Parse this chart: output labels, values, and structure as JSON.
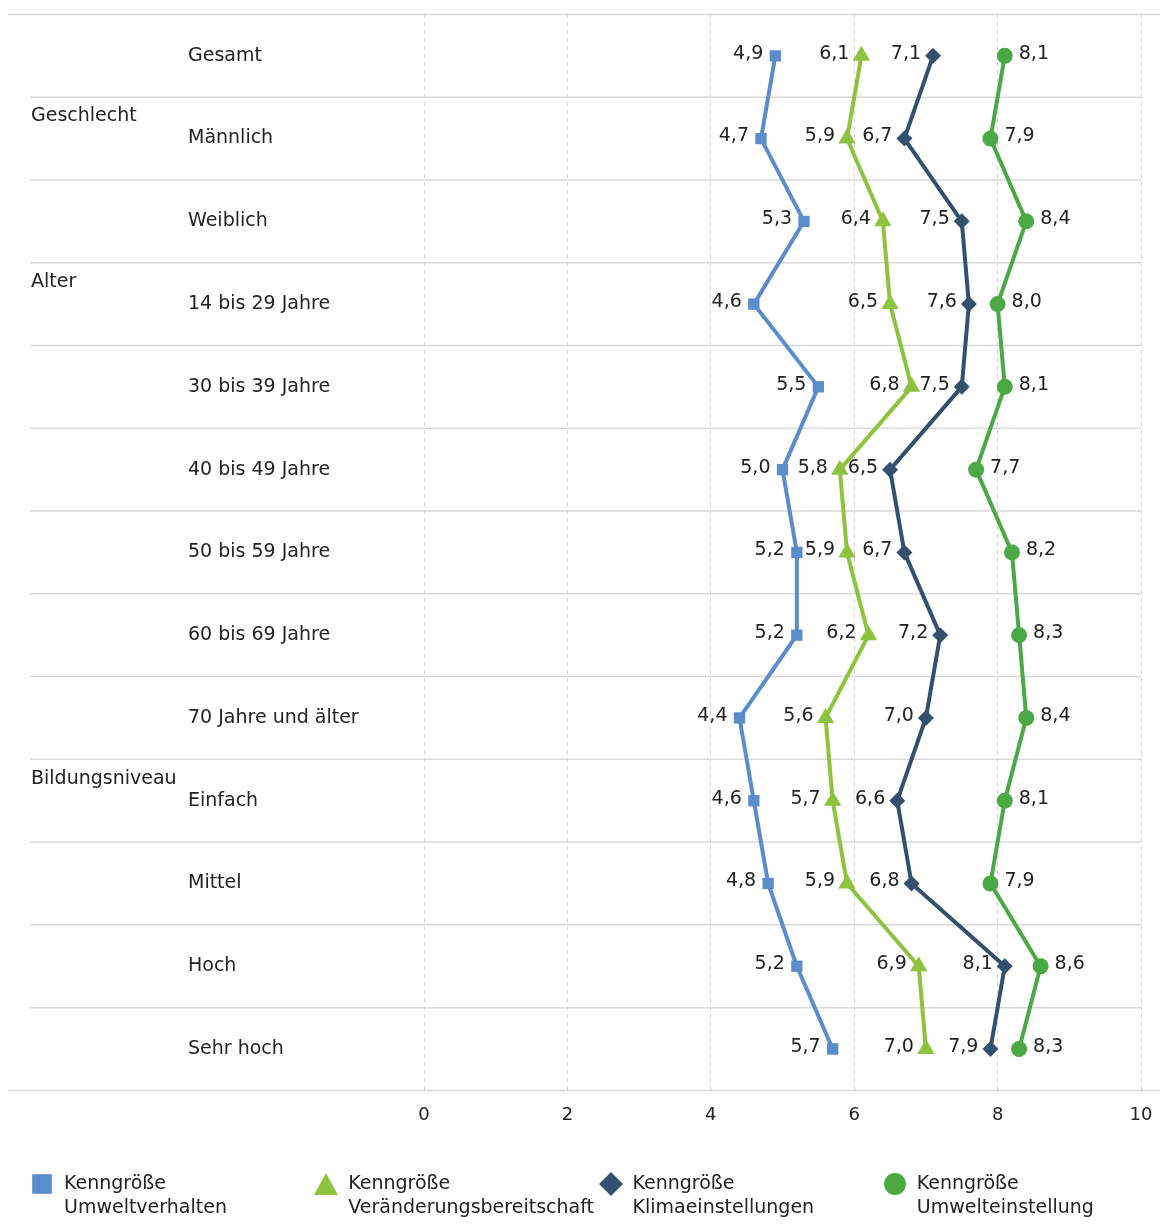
{
  "chart_data": {
    "type": "line",
    "orientation": "horizontal",
    "categories": [
      "Gesamt",
      "Männlich",
      "Weiblich",
      "14 bis 29 Jahre",
      "30 bis 39 Jahre",
      "40 bis 49 Jahre",
      "50 bis 59 Jahre",
      "60 bis 69 Jahre",
      "70 Jahre und älter",
      "Einfach",
      "Mittel",
      "Hoch",
      "Sehr hoch"
    ],
    "series": [
      {
        "name": "Kenngröße Umweltverhalten",
        "color": "#5b8dcc",
        "marker": "square",
        "values": [
          4.9,
          4.7,
          5.3,
          4.6,
          5.5,
          5.0,
          5.2,
          5.2,
          4.4,
          4.6,
          4.8,
          5.2,
          5.7
        ],
        "value_labels": [
          "4,9",
          "4,7",
          "5,3",
          "4,6",
          "5,5",
          "5,0",
          "5,2",
          "5,2",
          "4,4",
          "4,6",
          "4,8",
          "5,2",
          "5,7"
        ]
      },
      {
        "name": "Kenngröße Veränderungsbereitschaft",
        "color": "#8dc33f",
        "marker": "triangle",
        "values": [
          6.1,
          5.9,
          6.4,
          6.5,
          6.8,
          5.8,
          5.9,
          6.2,
          5.6,
          5.7,
          5.9,
          6.9,
          7.0
        ],
        "value_labels": [
          "6,1",
          "5,9",
          "6,4",
          "6,5",
          "6,8",
          "5,8",
          "5,9",
          "6,2",
          "5,6",
          "5,7",
          "5,9",
          "6,9",
          "7,0"
        ]
      },
      {
        "name": "Kenngröße Klimaeinstellungen",
        "color": "#34506f",
        "marker": "diamond",
        "values": [
          7.1,
          6.7,
          7.5,
          7.6,
          7.5,
          6.5,
          6.7,
          7.2,
          7.0,
          6.6,
          6.8,
          8.1,
          7.9
        ],
        "value_labels": [
          "7,1",
          "6,7",
          "7,5",
          "7,6",
          "7,5",
          "6,5",
          "6,7",
          "7,2",
          "7,0",
          "6,6",
          "6,8",
          "8,1",
          "7,9"
        ]
      },
      {
        "name": "Kenngröße Umwelteinstellung",
        "color": "#4aa845",
        "marker": "circle",
        "values": [
          8.1,
          7.9,
          8.4,
          8.0,
          8.1,
          7.7,
          8.2,
          8.3,
          8.4,
          8.1,
          7.9,
          8.6,
          8.3
        ],
        "value_labels": [
          "8,1",
          "7,9",
          "8,4",
          "8,0",
          "8,1",
          "7,7",
          "8,2",
          "8,3",
          "8,4",
          "8,1",
          "7,9",
          "8,6",
          "8,3"
        ]
      }
    ],
    "xlim": [
      0,
      10
    ],
    "xticks": [
      0,
      2,
      4,
      6,
      8,
      10
    ],
    "annotations": [
      "Geschlecht",
      "Alter",
      "Bildungsniveau"
    ],
    "grid": true,
    "legend": "bottom"
  }
}
